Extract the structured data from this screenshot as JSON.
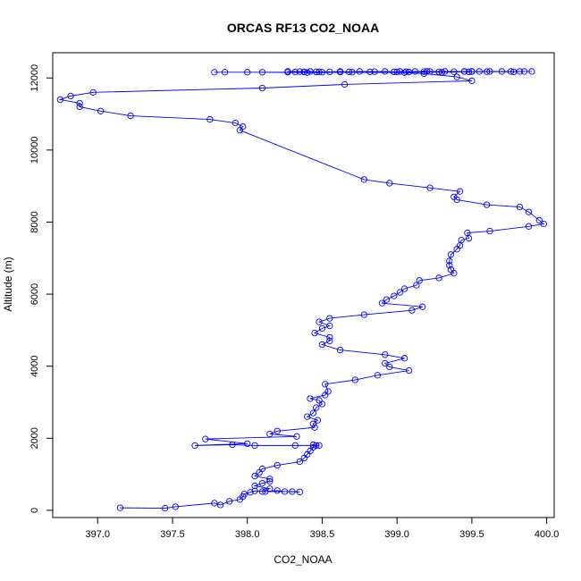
{
  "chart_data": {
    "type": "line",
    "title": "ORCAS RF13 CO2_NOAA",
    "xlabel": "CO2_NOAA",
    "ylabel": "Altitude (m)",
    "xlim": [
      396.7,
      400.05
    ],
    "ylim": [
      -200,
      12700
    ],
    "xticks": [
      397.0,
      397.5,
      398.0,
      398.5,
      399.0,
      399.5,
      400.0
    ],
    "xtick_labels": [
      "397.0",
      "397.5",
      "398.0",
      "398.5",
      "399.0",
      "399.5",
      "400.0"
    ],
    "yticks": [
      0,
      2000,
      4000,
      6000,
      8000,
      10000,
      12000
    ],
    "ytick_labels": [
      "0",
      "2000",
      "4000",
      "6000",
      "8000",
      "10000",
      "12000"
    ],
    "grid": false,
    "series": [
      {
        "color": "#0000ff",
        "marker": "open-circle",
        "points": [
          [
            397.15,
            70
          ],
          [
            397.45,
            60
          ],
          [
            397.52,
            100
          ],
          [
            397.78,
            200
          ],
          [
            397.82,
            150
          ],
          [
            397.88,
            250
          ],
          [
            397.95,
            300
          ],
          [
            397.97,
            380
          ],
          [
            397.98,
            450
          ],
          [
            398.02,
            500
          ],
          [
            398.05,
            540
          ],
          [
            398.12,
            520
          ],
          [
            398.2,
            550
          ],
          [
            398.25,
            520
          ],
          [
            398.35,
            510
          ],
          [
            398.3,
            520
          ],
          [
            398.1,
            520
          ],
          [
            398.15,
            600
          ],
          [
            398.05,
            680
          ],
          [
            398.1,
            750
          ],
          [
            398.15,
            800
          ],
          [
            398.15,
            870
          ],
          [
            398.05,
            950
          ],
          [
            398.08,
            1050
          ],
          [
            398.1,
            1150
          ],
          [
            398.2,
            1250
          ],
          [
            398.35,
            1350
          ],
          [
            398.38,
            1450
          ],
          [
            398.4,
            1550
          ],
          [
            398.42,
            1650
          ],
          [
            398.44,
            1750
          ],
          [
            398.48,
            1800
          ],
          [
            398.44,
            1820
          ],
          [
            398.46,
            1800
          ],
          [
            398.32,
            1800
          ],
          [
            398.05,
            1800
          ],
          [
            397.9,
            1820
          ],
          [
            397.65,
            1800
          ],
          [
            398.0,
            1850
          ],
          [
            397.72,
            1980
          ],
          [
            398.33,
            2050
          ],
          [
            398.15,
            2120
          ],
          [
            398.2,
            2200
          ],
          [
            398.45,
            2300
          ],
          [
            398.44,
            2400
          ],
          [
            398.47,
            2500
          ],
          [
            398.4,
            2600
          ],
          [
            398.44,
            2700
          ],
          [
            398.46,
            2850
          ],
          [
            398.5,
            2950
          ],
          [
            398.48,
            3050
          ],
          [
            398.42,
            3100
          ],
          [
            398.52,
            3200
          ],
          [
            398.54,
            3300
          ],
          [
            398.52,
            3500
          ],
          [
            398.72,
            3620
          ],
          [
            398.87,
            3750
          ],
          [
            399.08,
            3880
          ],
          [
            398.95,
            3980
          ],
          [
            398.92,
            4080
          ],
          [
            399.05,
            4220
          ],
          [
            398.92,
            4320
          ],
          [
            398.62,
            4450
          ],
          [
            398.5,
            4600
          ],
          [
            398.55,
            4700
          ],
          [
            398.55,
            4800
          ],
          [
            398.45,
            4920
          ],
          [
            398.5,
            5050
          ],
          [
            398.55,
            5120
          ],
          [
            398.48,
            5230
          ],
          [
            398.55,
            5330
          ],
          [
            398.78,
            5430
          ],
          [
            399.1,
            5550
          ],
          [
            399.17,
            5650
          ],
          [
            398.9,
            5750
          ],
          [
            398.93,
            5850
          ],
          [
            398.98,
            5950
          ],
          [
            399.02,
            6050
          ],
          [
            399.05,
            6150
          ],
          [
            399.13,
            6250
          ],
          [
            399.15,
            6380
          ],
          [
            399.28,
            6450
          ],
          [
            399.38,
            6580
          ],
          [
            399.36,
            6680
          ],
          [
            399.35,
            6800
          ],
          [
            399.35,
            6920
          ],
          [
            399.36,
            7100
          ],
          [
            399.4,
            7250
          ],
          [
            399.42,
            7350
          ],
          [
            399.43,
            7500
          ],
          [
            399.48,
            7550
          ],
          [
            399.47,
            7700
          ],
          [
            399.62,
            7750
          ],
          [
            399.88,
            7880
          ],
          [
            399.98,
            7950
          ],
          [
            399.95,
            8050
          ],
          [
            399.88,
            8280
          ],
          [
            399.82,
            8420
          ],
          [
            399.6,
            8480
          ],
          [
            399.4,
            8620
          ],
          [
            399.38,
            8700
          ],
          [
            399.42,
            8850
          ],
          [
            399.22,
            8950
          ],
          [
            398.95,
            9080
          ],
          [
            398.78,
            9180
          ],
          [
            397.95,
            10550
          ],
          [
            397.97,
            10650
          ],
          [
            397.92,
            10750
          ],
          [
            397.75,
            10850
          ],
          [
            397.22,
            10950
          ],
          [
            397.02,
            11080
          ],
          [
            396.88,
            11200
          ],
          [
            396.88,
            11300
          ],
          [
            396.75,
            11400
          ],
          [
            396.82,
            11500
          ],
          [
            396.97,
            11600
          ],
          [
            398.1,
            11720
          ],
          [
            398.65,
            11820
          ],
          [
            399.5,
            11920
          ],
          [
            399.4,
            12030
          ],
          [
            399.18,
            12120
          ],
          [
            399.05,
            12150
          ],
          [
            398.5,
            12160
          ],
          [
            398.38,
            12170
          ],
          [
            398.32,
            12165
          ],
          [
            398.35,
            12175
          ],
          [
            398.27,
            12180
          ],
          [
            398.42,
            12180
          ],
          [
            398.46,
            12170
          ],
          [
            398.55,
            12170
          ],
          [
            398.62,
            12180
          ],
          [
            398.68,
            12170
          ],
          [
            398.75,
            12180
          ],
          [
            398.85,
            12175
          ],
          [
            398.92,
            12180
          ],
          [
            398.98,
            12170
          ],
          [
            399.02,
            12180
          ],
          [
            399.06,
            12175
          ],
          [
            399.12,
            12180
          ],
          [
            399.18,
            12175
          ],
          [
            399.22,
            12180
          ],
          [
            399.28,
            12170
          ],
          [
            399.32,
            12180
          ],
          [
            399.38,
            12175
          ],
          [
            399.45,
            12180
          ],
          [
            399.5,
            12175
          ],
          [
            399.55,
            12180
          ],
          [
            399.62,
            12180
          ],
          [
            399.7,
            12180
          ],
          [
            399.76,
            12180
          ],
          [
            399.82,
            12180
          ],
          [
            399.9,
            12180
          ],
          [
            399.85,
            12180
          ],
          [
            399.78,
            12170
          ],
          [
            399.6,
            12175
          ],
          [
            399.48,
            12170
          ],
          [
            399.3,
            12160
          ],
          [
            399.08,
            12165
          ],
          [
            398.82,
            12170
          ],
          [
            398.62,
            12165
          ],
          [
            398.48,
            12168
          ],
          [
            398.38,
            12165
          ],
          [
            398.27,
            12160
          ],
          [
            398.1,
            12160
          ],
          [
            397.85,
            12160
          ],
          [
            397.78,
            12160
          ],
          [
            398.0,
            12160
          ],
          [
            398.4,
            12150
          ],
          [
            398.7,
            12160
          ],
          [
            399.0,
            12170
          ],
          [
            399.2,
            12180
          ],
          [
            399.45,
            12180
          ],
          [
            399.5,
            12185
          ]
        ]
      }
    ]
  }
}
